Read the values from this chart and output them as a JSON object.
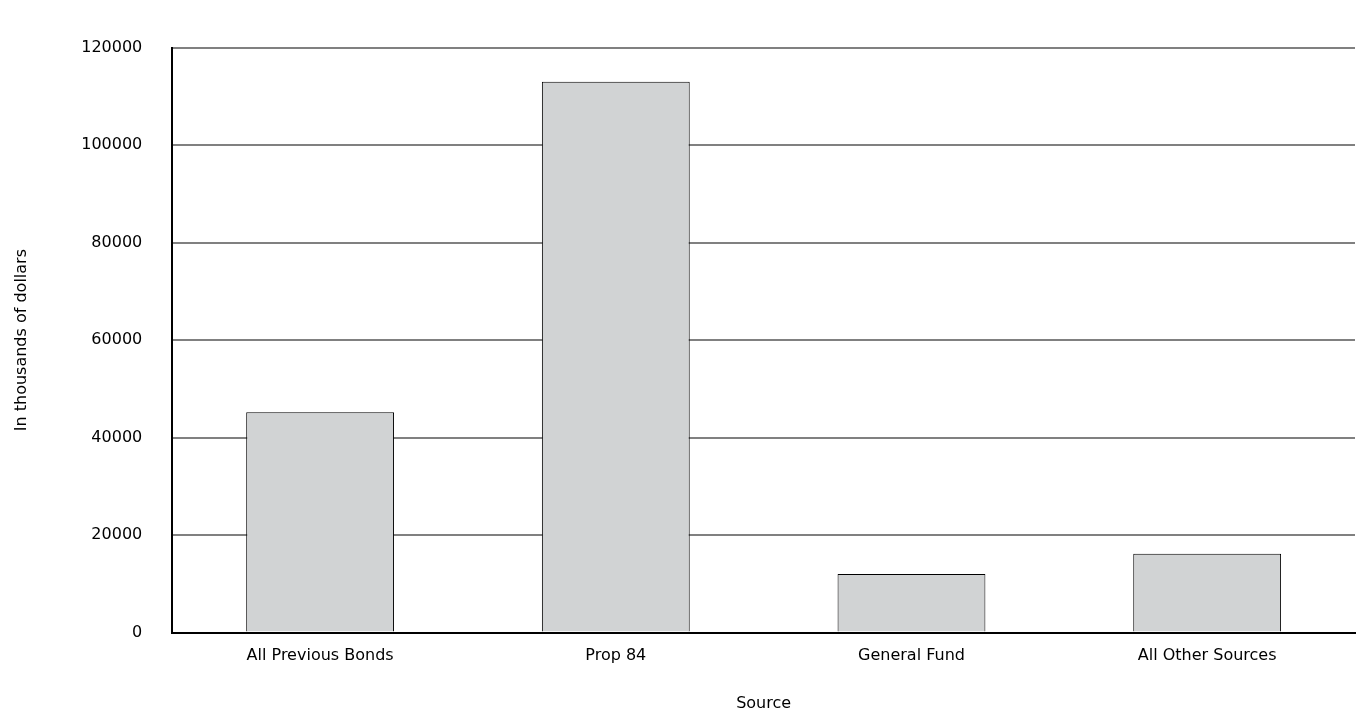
{
  "chart_data": {
    "type": "bar",
    "xlabel": "Source",
    "ylabel": "In thousands of dollars",
    "categories": [
      "All Previous Bonds",
      "Prop 84",
      "General Fund",
      "All Other Sources"
    ],
    "values": [
      45200,
      113000,
      12000,
      16200
    ],
    "color": "#d1d3d4",
    "ylim": [
      0,
      120000
    ],
    "yticks": [
      0,
      20000,
      40000,
      60000,
      80000,
      100000,
      120000
    ],
    "grid": "y",
    "legend": false
  }
}
